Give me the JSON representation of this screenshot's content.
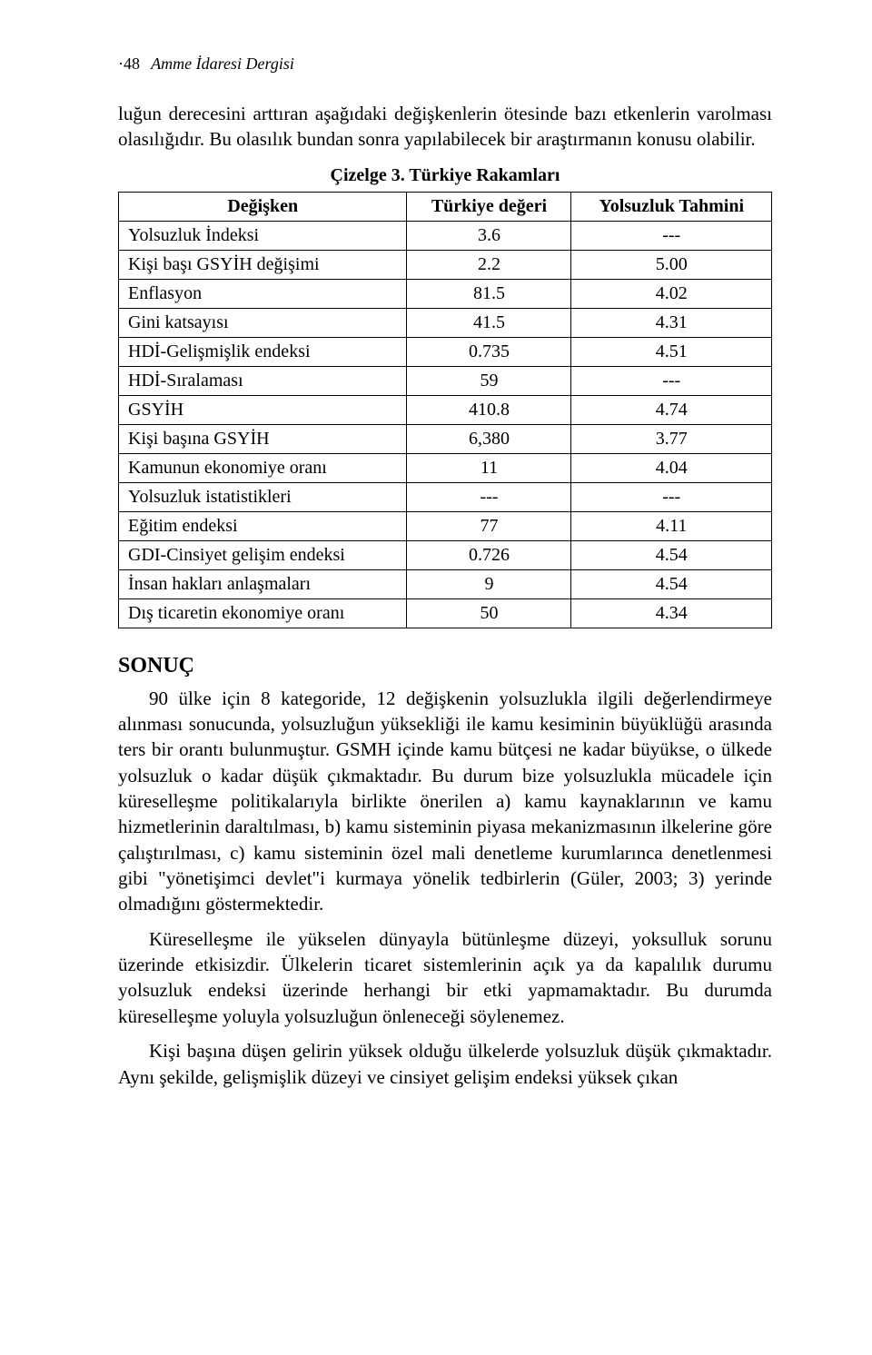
{
  "page": {
    "number": "·48",
    "journal": "Amme İdaresi Dergisi"
  },
  "intro": "luğun derecesini arttıran aşağıdaki değişkenlerin ötesinde bazı etkenlerin varolması olasılığıdır. Bu olasılık bundan sonra yapılabilecek bir araştırmanın konusu olabilir.",
  "table": {
    "caption": "Çizelge 3. Türkiye Rakamları",
    "columns": [
      "Değişken",
      "Türkiye değeri",
      "Yolsuzluk Tahmini"
    ],
    "rows": [
      [
        "Yolsuzluk İndeksi",
        "3.6",
        "---"
      ],
      [
        "Kişi başı GSYİH değişimi",
        "2.2",
        "5.00"
      ],
      [
        "Enflasyon",
        "81.5",
        "4.02"
      ],
      [
        "Gini katsayısı",
        "41.5",
        "4.31"
      ],
      [
        "HDİ-Gelişmişlik endeksi",
        "0.735",
        "4.51"
      ],
      [
        "HDİ-Sıralaması",
        "59",
        "---"
      ],
      [
        "GSYİH",
        "410.8",
        "4.74"
      ],
      [
        "Kişi başına GSYİH",
        "6,380",
        "3.77"
      ],
      [
        "Kamunun ekonomiye oranı",
        "11",
        "4.04"
      ],
      [
        "Yolsuzluk istatistikleri",
        "---",
        "---"
      ],
      [
        "Eğitim endeksi",
        "77",
        "4.11"
      ],
      [
        "GDI-Cinsiyet gelişim endeksi",
        "0.726",
        "4.54"
      ],
      [
        "İnsan hakları anlaşmaları",
        "9",
        "4.54"
      ],
      [
        "Dış ticaretin ekonomiye oranı",
        "50",
        "4.34"
      ]
    ]
  },
  "section_heading": "SONUÇ",
  "paragraphs": [
    "90 ülke için 8 kategoride, 12 değişkenin yolsuzlukla ilgili değerlendirmeye alınması sonucunda, yolsuzluğun yüksekliği ile kamu kesiminin büyüklüğü arasında ters bir orantı bulunmuştur. GSMH içinde kamu bütçesi ne kadar büyükse, o ülkede yolsuzluk o kadar düşük çıkmaktadır. Bu durum bize yolsuzlukla mücadele için küreselleşme politikalarıyla birlikte önerilen a) kamu kaynaklarının ve kamu hizmetlerinin daraltılması, b) kamu sisteminin piyasa mekanizmasının ilkelerine göre çalıştırılması, c) kamu sisteminin özel mali denetleme kurumlarınca denetlenmesi gibi \"yönetişimci devlet\"i kurmaya yönelik tedbirlerin (Güler, 2003; 3) yerinde olmadığını göstermektedir.",
    "Küreselleşme ile yükselen dünyayla bütünleşme düzeyi, yoksulluk sorunu üzerinde etkisizdir. Ülkelerin ticaret sistemlerinin açık ya da kapalılık durumu yolsuzluk endeksi üzerinde herhangi bir etki yapmamaktadır. Bu durumda küreselleşme yoluyla yolsuzluğun önleneceği söylenemez.",
    "Kişi başına düşen gelirin yüksek olduğu ülkelerde yolsuzluk düşük çıkmaktadır. Aynı şekilde, gelişmişlik düzeyi ve cinsiyet gelişim endeksi yüksek çıkan"
  ]
}
